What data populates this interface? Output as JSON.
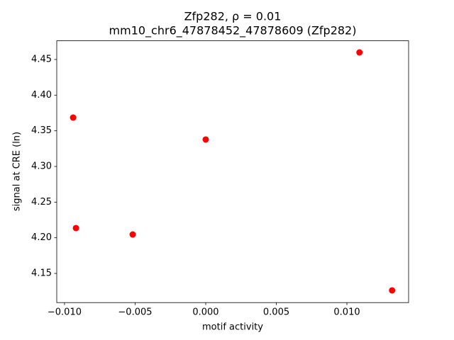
{
  "chart_data": {
    "type": "scatter",
    "title": [
      "Zfp282, ρ = 0.01",
      "mm10_chr6_47878452_47878609 (Zfp282)"
    ],
    "xlabel": "motif activity",
    "ylabel": "signal at CRE (ln)",
    "x": [
      -0.00939,
      -0.00919,
      -0.00517,
      0.0,
      0.01089,
      0.0132
    ],
    "values": [
      4.3685,
      4.2136,
      4.2046,
      4.3378,
      4.4599,
      4.1262
    ],
    "color": "#ff0000",
    "xlim": [
      -0.01055,
      0.01437
    ],
    "ylim": [
      4.1091,
      4.4762
    ],
    "xticks": [
      {
        "value": -0.01,
        "label": "−0.010"
      },
      {
        "value": -0.005,
        "label": "−0.005"
      },
      {
        "value": 0,
        "label": "0.000"
      },
      0.005,
      {
        "value": 0.01,
        "label": "0.010"
      }
    ],
    "yticks": [
      4.15,
      {
        "value": 4.2,
        "label": "4.20"
      },
      4.25,
      {
        "value": 4.3,
        "label": "4.30"
      },
      4.35,
      {
        "value": 4.4,
        "label": "4.40"
      },
      4.45
    ]
  }
}
